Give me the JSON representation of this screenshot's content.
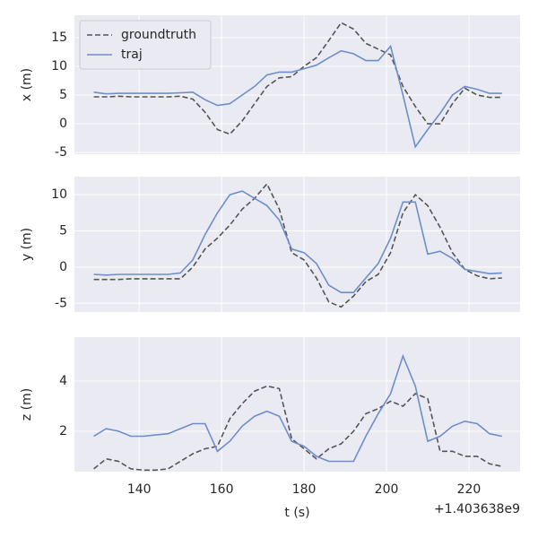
{
  "chart_data": [
    {
      "type": "line",
      "ylabel": "x (m)",
      "legend": "upper left",
      "grid": true,
      "x": [
        129,
        132,
        135,
        138,
        141,
        144,
        147,
        150,
        153,
        156,
        159,
        162,
        165,
        168,
        171,
        174,
        177,
        180,
        183,
        186,
        189,
        192,
        195,
        198,
        201,
        204,
        207,
        210,
        213,
        216,
        219,
        222,
        225,
        228
      ],
      "xlim": [
        124.3,
        232.4
      ],
      "xticks": [
        140,
        160,
        180,
        200,
        220
      ],
      "ylim": [
        -5.3,
        18.9
      ],
      "yticks": [
        -5,
        0,
        5,
        10,
        15
      ],
      "series": [
        {
          "name": "groundtruth",
          "color": "#555555",
          "linestyle": "dashed",
          "values": [
            4.7,
            4.7,
            4.8,
            4.7,
            4.7,
            4.7,
            4.7,
            4.8,
            4.3,
            2.0,
            -1.0,
            -1.8,
            0.5,
            3.5,
            6.5,
            8.0,
            8.2,
            10.0,
            11.5,
            14.5,
            17.6,
            16.5,
            14.0,
            13.0,
            12.0,
            6.5,
            3.0,
            0.0,
            0.0,
            3.5,
            6.2,
            5.0,
            4.6,
            4.6
          ]
        },
        {
          "name": "traj",
          "color": "#6d8ecb",
          "linestyle": "solid",
          "values": [
            5.5,
            5.2,
            5.3,
            5.3,
            5.3,
            5.3,
            5.3,
            5.4,
            5.5,
            4.2,
            3.2,
            3.5,
            5.0,
            6.5,
            8.5,
            9.0,
            9.0,
            9.6,
            10.2,
            11.5,
            12.7,
            12.2,
            11.0,
            11.0,
            13.5,
            5.0,
            -4.0,
            -1.0,
            1.8,
            5.0,
            6.5,
            6.0,
            5.3,
            5.3
          ]
        }
      ]
    },
    {
      "type": "line",
      "ylabel": "y (m)",
      "grid": true,
      "x": [
        129,
        132,
        135,
        138,
        141,
        144,
        147,
        150,
        153,
        156,
        159,
        162,
        165,
        168,
        171,
        174,
        177,
        180,
        183,
        186,
        189,
        192,
        195,
        198,
        201,
        204,
        207,
        210,
        213,
        216,
        219,
        222,
        225,
        228
      ],
      "xlim": [
        124.3,
        232.4
      ],
      "xticks": [
        140,
        160,
        180,
        200,
        220
      ],
      "ylim": [
        -6.2,
        12.5
      ],
      "yticks": [
        -5,
        0,
        5,
        10
      ],
      "series": [
        {
          "color": "#555555",
          "linestyle": "dashed",
          "values": [
            -1.7,
            -1.7,
            -1.7,
            -1.6,
            -1.6,
            -1.6,
            -1.6,
            -1.6,
            0.0,
            2.5,
            4.0,
            5.8,
            8.0,
            9.5,
            11.5,
            8.0,
            2.0,
            1.0,
            -1.5,
            -4.8,
            -5.5,
            -4.0,
            -2.0,
            -1.0,
            2.0,
            7.5,
            10.0,
            8.5,
            5.5,
            2.0,
            -0.3,
            -1.2,
            -1.6,
            -1.5
          ]
        },
        {
          "color": "#6d8ecb",
          "linestyle": "solid",
          "values": [
            -1.0,
            -1.1,
            -1.0,
            -1.0,
            -1.0,
            -1.0,
            -1.0,
            -0.8,
            1.0,
            4.5,
            7.5,
            10.0,
            10.5,
            9.5,
            8.5,
            6.5,
            2.5,
            2.0,
            0.5,
            -2.5,
            -3.5,
            -3.5,
            -1.5,
            0.5,
            4.0,
            9.0,
            9.0,
            1.8,
            2.2,
            1.2,
            -0.3,
            -0.6,
            -0.9,
            -0.8
          ]
        }
      ]
    },
    {
      "type": "line",
      "ylabel": "z (m)",
      "xlabel": "t (s)",
      "x_offset_label": "+1.403638e9",
      "grid": true,
      "x": [
        129,
        132,
        135,
        138,
        141,
        144,
        147,
        150,
        153,
        156,
        159,
        162,
        165,
        168,
        171,
        174,
        177,
        180,
        183,
        186,
        189,
        192,
        195,
        198,
        201,
        204,
        207,
        210,
        213,
        216,
        219,
        222,
        225,
        228
      ],
      "xlim": [
        124.3,
        232.4
      ],
      "xticks": [
        140,
        160,
        180,
        200,
        220
      ],
      "ylim": [
        0.39,
        5.75
      ],
      "yticks": [
        2,
        4
      ],
      "series": [
        {
          "color": "#555555",
          "linestyle": "dashed",
          "values": [
            0.5,
            0.9,
            0.8,
            0.5,
            0.45,
            0.45,
            0.5,
            0.8,
            1.1,
            1.3,
            1.4,
            2.5,
            3.1,
            3.6,
            3.8,
            3.7,
            1.7,
            1.3,
            0.9,
            1.3,
            1.5,
            2.0,
            2.7,
            2.9,
            3.2,
            3.0,
            3.5,
            3.3,
            1.2,
            1.2,
            1.0,
            1.0,
            0.7,
            0.6
          ]
        },
        {
          "color": "#6d8ecb",
          "linestyle": "solid",
          "values": [
            1.8,
            2.1,
            2.0,
            1.8,
            1.8,
            1.85,
            1.9,
            2.1,
            2.3,
            2.3,
            1.2,
            1.6,
            2.2,
            2.6,
            2.8,
            2.6,
            1.6,
            1.4,
            1.0,
            0.8,
            0.8,
            0.8,
            1.8,
            2.7,
            3.5,
            5.0,
            3.8,
            1.6,
            1.8,
            2.2,
            2.4,
            2.3,
            1.9,
            1.8
          ]
        }
      ]
    }
  ]
}
